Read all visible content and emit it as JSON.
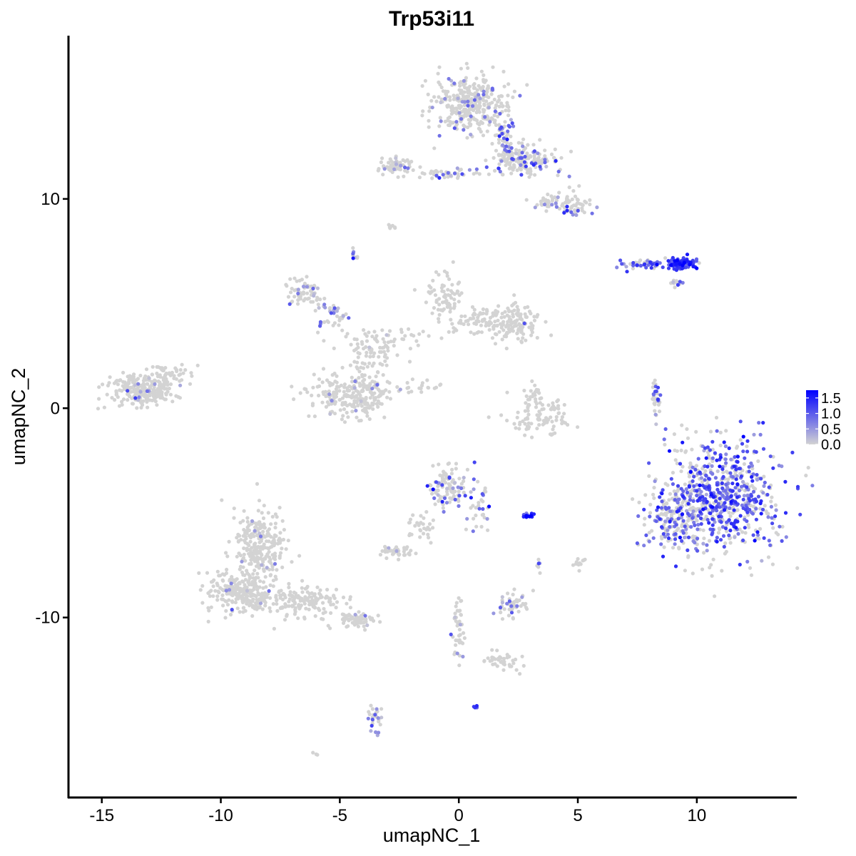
{
  "chart_data": {
    "type": "scatter",
    "title": "Trp53i11",
    "xlabel": "umapNC_1",
    "ylabel": "umapNC_2",
    "xlim": [
      -16.4,
      14.2
    ],
    "ylim": [
      -18.6,
      17.8
    ],
    "xticks": [
      -15,
      -10,
      -5,
      0,
      5,
      10
    ],
    "yticks": [
      -10,
      0,
      10
    ],
    "xtick_labels": [
      "-15",
      "-10",
      "-5",
      "0",
      "5",
      "10"
    ],
    "ytick_labels": [
      "-10",
      "0",
      "10"
    ],
    "grid": false,
    "color_scale": {
      "low_color": "#d3d3d3",
      "high_color": "#0000ff",
      "min": 0.0,
      "max": 1.75,
      "ticks": [
        0.0,
        0.5,
        1.0,
        1.5
      ],
      "tick_labels": [
        "0.0",
        "0.5",
        "1.0",
        "1.5"
      ],
      "legend_position": "right"
    },
    "clusters": [
      {
        "cx": 11.0,
        "cy": -4.3,
        "sx": 1.7,
        "sy": 1.9,
        "n": 720,
        "frac": 0.55,
        "expr": 1.0
      },
      {
        "cx": 8.8,
        "cy": -5.3,
        "sx": 0.7,
        "sy": 0.9,
        "n": 120,
        "frac": 0.45,
        "expr": 0.9
      },
      {
        "cx": 9.4,
        "cy": 6.9,
        "sx": 0.4,
        "sy": 0.18,
        "n": 110,
        "frac": 0.85,
        "expr": 1.2
      },
      {
        "cx": 7.8,
        "cy": 6.9,
        "sx": 0.6,
        "sy": 0.12,
        "n": 50,
        "frac": 0.7,
        "expr": 0.9
      },
      {
        "cx": 9.1,
        "cy": 6.0,
        "sx": 0.25,
        "sy": 0.15,
        "n": 12,
        "frac": 0.6,
        "expr": 0.8
      },
      {
        "cx": 8.3,
        "cy": 0.5,
        "sx": 0.15,
        "sy": 0.6,
        "n": 30,
        "frac": 0.5,
        "expr": 0.8
      },
      {
        "cx": 0.5,
        "cy": 14.5,
        "sx": 1.0,
        "sy": 0.9,
        "n": 330,
        "frac": 0.12,
        "expr": 0.6
      },
      {
        "cx": 2.8,
        "cy": 11.8,
        "sx": 0.9,
        "sy": 0.5,
        "n": 160,
        "frac": 0.25,
        "expr": 0.9
      },
      {
        "cx": 4.8,
        "cy": 9.7,
        "sx": 0.5,
        "sy": 0.4,
        "n": 60,
        "frac": 0.25,
        "expr": 0.8
      },
      {
        "cx": 1.9,
        "cy": 13.0,
        "sx": 0.25,
        "sy": 0.9,
        "n": 60,
        "frac": 0.3,
        "expr": 0.8
      },
      {
        "cx": -2.6,
        "cy": 11.6,
        "sx": 0.5,
        "sy": 0.3,
        "n": 60,
        "frac": 0.15,
        "expr": 0.6
      },
      {
        "cx": -0.6,
        "cy": 11.2,
        "sx": 1.1,
        "sy": 0.15,
        "n": 40,
        "frac": 0.2,
        "expr": 0.6
      },
      {
        "cx": 3.8,
        "cy": 9.8,
        "sx": 0.4,
        "sy": 0.35,
        "n": 30,
        "frac": 0.1,
        "expr": 0.5
      },
      {
        "cx": -2.8,
        "cy": 8.7,
        "sx": 0.15,
        "sy": 0.1,
        "n": 8,
        "frac": 0.0,
        "expr": 0.5
      },
      {
        "cx": -4.4,
        "cy": 7.4,
        "sx": 0.1,
        "sy": 0.2,
        "n": 10,
        "frac": 0.6,
        "expr": 0.8
      },
      {
        "cx": -6.6,
        "cy": 5.5,
        "sx": 0.5,
        "sy": 0.5,
        "n": 60,
        "frac": 0.15,
        "expr": 0.6
      },
      {
        "cx": -5.3,
        "cy": 4.5,
        "sx": 0.5,
        "sy": 0.4,
        "n": 40,
        "frac": 0.4,
        "expr": 0.6
      },
      {
        "cx": -3.2,
        "cy": 3.2,
        "sx": 1.2,
        "sy": 0.6,
        "n": 80,
        "frac": 0.02,
        "expr": 0.5
      },
      {
        "cx": -0.6,
        "cy": 5.4,
        "sx": 0.6,
        "sy": 0.7,
        "n": 70,
        "frac": 0.0,
        "expr": 0.5
      },
      {
        "cx": 0.8,
        "cy": 4.2,
        "sx": 0.7,
        "sy": 0.4,
        "n": 60,
        "frac": 0.0,
        "expr": 0.5
      },
      {
        "cx": 2.2,
        "cy": 4.1,
        "sx": 0.8,
        "sy": 0.6,
        "n": 140,
        "frac": 0.02,
        "expr": 0.5
      },
      {
        "cx": -3.8,
        "cy": 1.5,
        "sx": 0.5,
        "sy": 1.0,
        "n": 50,
        "frac": 0.0,
        "expr": 0.5
      },
      {
        "cx": -4.5,
        "cy": 0.6,
        "sx": 1.2,
        "sy": 0.7,
        "n": 220,
        "frac": 0.08,
        "expr": 0.5
      },
      {
        "cx": -1.7,
        "cy": 1.0,
        "sx": 0.6,
        "sy": 0.2,
        "n": 20,
        "frac": 0.0,
        "expr": 0.5
      },
      {
        "cx": 3.3,
        "cy": -0.4,
        "sx": 1.0,
        "sy": 0.6,
        "n": 90,
        "frac": 0.0,
        "expr": 0.5
      },
      {
        "cx": 3.2,
        "cy": 0.7,
        "sx": 0.2,
        "sy": 0.4,
        "n": 20,
        "frac": 0.0,
        "expr": 0.5
      },
      {
        "cx": -13.3,
        "cy": 0.9,
        "sx": 0.9,
        "sy": 0.5,
        "n": 280,
        "frac": 0.05,
        "expr": 0.5
      },
      {
        "cx": -12.2,
        "cy": 1.6,
        "sx": 0.6,
        "sy": 0.4,
        "n": 40,
        "frac": 0.02,
        "expr": 0.5
      },
      {
        "cx": -0.4,
        "cy": -3.8,
        "sx": 0.6,
        "sy": 0.6,
        "n": 110,
        "frac": 0.25,
        "expr": 0.8
      },
      {
        "cx": 0.9,
        "cy": -4.9,
        "sx": 0.4,
        "sy": 0.6,
        "n": 30,
        "frac": 0.3,
        "expr": 0.8
      },
      {
        "cx": -1.5,
        "cy": -5.6,
        "sx": 0.4,
        "sy": 0.6,
        "n": 30,
        "frac": 0.0,
        "expr": 0.5
      },
      {
        "cx": -2.5,
        "cy": -6.9,
        "sx": 0.4,
        "sy": 0.2,
        "n": 40,
        "frac": 0.1,
        "expr": 0.6
      },
      {
        "cx": 2.9,
        "cy": -5.1,
        "sx": 0.12,
        "sy": 0.08,
        "n": 14,
        "frac": 1.0,
        "expr": 1.5
      },
      {
        "cx": -8.4,
        "cy": -6.6,
        "sx": 0.7,
        "sy": 1.2,
        "n": 260,
        "frac": 0.03,
        "expr": 0.5
      },
      {
        "cx": -9.2,
        "cy": -8.8,
        "sx": 0.9,
        "sy": 0.7,
        "n": 240,
        "frac": 0.03,
        "expr": 0.5
      },
      {
        "cx": -6.5,
        "cy": -9.2,
        "sx": 1.2,
        "sy": 0.5,
        "n": 160,
        "frac": 0.0,
        "expr": 0.5
      },
      {
        "cx": -4.3,
        "cy": -10.1,
        "sx": 0.6,
        "sy": 0.25,
        "n": 60,
        "frac": 0.02,
        "expr": 0.5
      },
      {
        "cx": 2.2,
        "cy": -9.4,
        "sx": 0.5,
        "sy": 0.4,
        "n": 50,
        "frac": 0.2,
        "expr": 0.7
      },
      {
        "cx": 5.0,
        "cy": -7.4,
        "sx": 0.2,
        "sy": 0.2,
        "n": 12,
        "frac": 0.0,
        "expr": 0.5
      },
      {
        "cx": 3.3,
        "cy": -7.7,
        "sx": 0.1,
        "sy": 0.3,
        "n": 6,
        "frac": 0.5,
        "expr": 0.7
      },
      {
        "cx": 0.0,
        "cy": -10.5,
        "sx": 0.2,
        "sy": 1.1,
        "n": 40,
        "frac": 0.1,
        "expr": 0.6
      },
      {
        "cx": 1.7,
        "cy": -12.1,
        "sx": 0.6,
        "sy": 0.3,
        "n": 40,
        "frac": 0.0,
        "expr": 0.5
      },
      {
        "cx": -3.5,
        "cy": -14.8,
        "sx": 0.2,
        "sy": 0.5,
        "n": 30,
        "frac": 0.3,
        "expr": 0.7
      },
      {
        "cx": 0.7,
        "cy": -14.3,
        "sx": 0.08,
        "sy": 0.08,
        "n": 4,
        "frac": 1.0,
        "expr": 0.7
      },
      {
        "cx": -6.0,
        "cy": -16.5,
        "sx": 0.08,
        "sy": 0.08,
        "n": 3,
        "frac": 0.0,
        "expr": 0.5
      }
    ]
  }
}
